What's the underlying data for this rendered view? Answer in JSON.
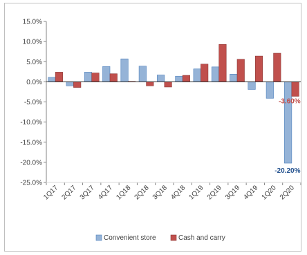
{
  "chart_data": {
    "type": "bar",
    "categories": [
      "1Q17",
      "2Q17",
      "3Q17",
      "4Q17",
      "1Q18",
      "2Q18",
      "3Q18",
      "4Q18",
      "1Q19",
      "2Q19",
      "3Q19",
      "4Q19",
      "1Q20",
      "2Q20"
    ],
    "series": [
      {
        "name": "Convenient store",
        "color": "#95B3D7",
        "stroke": "#4F81BD",
        "values": [
          1.1,
          -1.0,
          2.4,
          3.8,
          5.7,
          3.9,
          1.7,
          1.4,
          3.2,
          3.7,
          1.9,
          -1.9,
          -4.1,
          -20.2
        ]
      },
      {
        "name": "Cash and carry",
        "color": "#C0504D",
        "stroke": "#8C3836",
        "values": [
          2.4,
          -1.4,
          2.2,
          2.0,
          0.1,
          -1.0,
          -1.3,
          1.6,
          4.4,
          9.3,
          5.6,
          6.4,
          7.1,
          -3.6
        ]
      }
    ],
    "y_ticks": [
      "15.0%",
      "10.0%",
      "5.0%",
      "0.0%",
      "-5.0%",
      "-10.0%",
      "-15.0%",
      "-20.0%",
      "-25.0%"
    ],
    "ylim": [
      -25,
      15
    ],
    "grid": false,
    "legend": "bottom",
    "annotations": [
      {
        "text": "-3.60%",
        "series": 1,
        "category": "2Q20",
        "color": "#C0504D"
      },
      {
        "text": "-20.20%",
        "series": 0,
        "category": "2Q20",
        "color": "#1F4E8C"
      }
    ]
  }
}
